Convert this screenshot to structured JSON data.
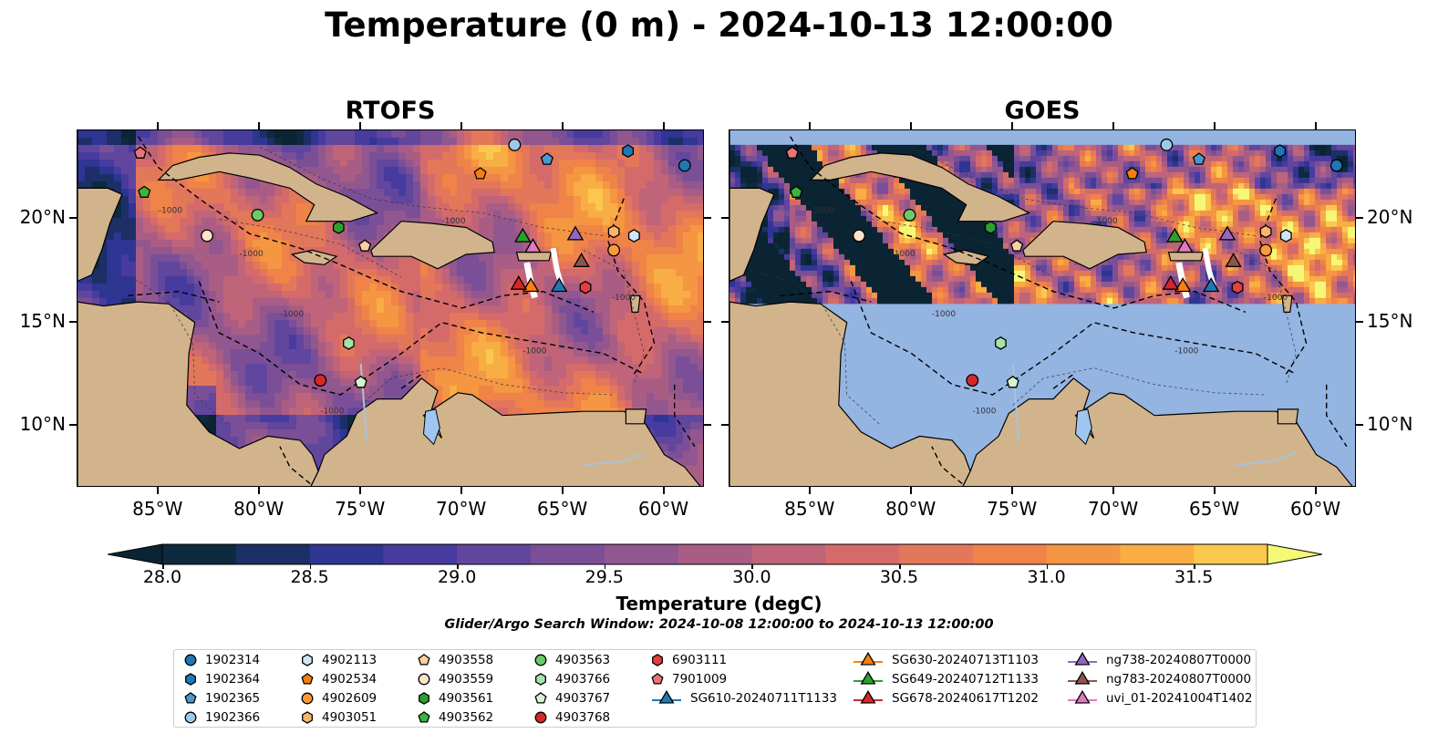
{
  "title": "Temperature (0 m) - 2024-10-13 12:00:00",
  "panels": [
    {
      "title": "RTOFS"
    },
    {
      "title": "GOES"
    }
  ],
  "x_ticks": [
    "85°W",
    "80°W",
    "75°W",
    "70°W",
    "65°W",
    "60°W"
  ],
  "y_ticks": [
    "20°N",
    "15°N",
    "10°N"
  ],
  "colorbar": {
    "label": "Temperature (degC)",
    "ticks": [
      "28.0",
      "28.5",
      "29.0",
      "29.5",
      "30.0",
      "30.5",
      "31.0",
      "31.5"
    ],
    "colors": [
      "#0d2a3e",
      "#1c2f66",
      "#2f3592",
      "#473b9f",
      "#61469e",
      "#7a4f98",
      "#92578f",
      "#a95d85",
      "#bf6479",
      "#d46b6a",
      "#e3775a",
      "#ef8348",
      "#f59642",
      "#f8ad45",
      "#fbc84e"
    ],
    "under_color": "#0b2433",
    "over_color": "#f5f876"
  },
  "contour_label": "-1000",
  "search_window": "Glider/Argo Search Window: 2024-10-08 12:00:00 to 2024-10-13 12:00:00",
  "legend": [
    {
      "label": "1902314",
      "marker": "circle",
      "color": "#1f77b4"
    },
    {
      "label": "1902364",
      "marker": "hexagon",
      "color": "#1f77b4"
    },
    {
      "label": "1902365",
      "marker": "pentagon",
      "color": "#4a98d0"
    },
    {
      "label": "1902366",
      "marker": "circle",
      "color": "#9ecae9"
    },
    {
      "label": "4902113",
      "marker": "hexagon",
      "color": "#cfe6f6"
    },
    {
      "label": "4902534",
      "marker": "pentagon",
      "color": "#f57f0e"
    },
    {
      "label": "4902609",
      "marker": "circle",
      "color": "#f99a3b"
    },
    {
      "label": "4903051",
      "marker": "hexagon",
      "color": "#fcb46c"
    },
    {
      "label": "4903558",
      "marker": "pentagon",
      "color": "#fdce9f"
    },
    {
      "label": "4903559",
      "marker": "circle",
      "color": "#fde3c8"
    },
    {
      "label": "4903561",
      "marker": "hexagon",
      "color": "#2ca02c"
    },
    {
      "label": "4903562",
      "marker": "pentagon",
      "color": "#3cb43c"
    },
    {
      "label": "4903563",
      "marker": "circle",
      "color": "#69cc69"
    },
    {
      "label": "4903766",
      "marker": "hexagon",
      "color": "#a6e3a6"
    },
    {
      "label": "4903767",
      "marker": "pentagon",
      "color": "#d4f5d0"
    },
    {
      "label": "4903768",
      "marker": "circle",
      "color": "#d62728"
    },
    {
      "label": "6903111",
      "marker": "hexagon",
      "color": "#e04040"
    },
    {
      "label": "7901009",
      "marker": "pentagon",
      "color": "#e8747a"
    },
    {
      "label": "SG610-20240711T1133",
      "marker": "triangle-line",
      "color": "#1f77b4"
    },
    {
      "label": "SG630-20240713T1103",
      "marker": "triangle-line",
      "color": "#ff7f0e"
    },
    {
      "label": "SG649-20240712T1133",
      "marker": "triangle-line",
      "color": "#2ca02c"
    },
    {
      "label": "SG678-20240617T1202",
      "marker": "triangle-line",
      "color": "#d62728"
    },
    {
      "label": "ng738-20240807T0000",
      "marker": "triangle-line",
      "color": "#9467bd"
    },
    {
      "label": "ng783-20240807T0000",
      "marker": "triangle-line",
      "color": "#8c564b"
    },
    {
      "label": "uvi_01-20241004T1402",
      "marker": "triangle-line",
      "color": "#e377c2"
    }
  ],
  "map_data": {
    "lon_range": [
      -89,
      -58
    ],
    "lat_range": [
      7,
      24.3
    ],
    "land_color": "#d2b48c",
    "nodata_color": "#94b4e2",
    "stations": [
      {
        "id": "1902314",
        "lon": -59,
        "lat": 22.6
      },
      {
        "id": "1902364",
        "lon": -61.8,
        "lat": 23.3
      },
      {
        "id": "1902365",
        "lon": -65.8,
        "lat": 22.9
      },
      {
        "id": "1902366",
        "lon": -67.4,
        "lat": 23.6
      },
      {
        "id": "4902113",
        "lon": -61.5,
        "lat": 19.2
      },
      {
        "id": "4902534",
        "lon": -69.1,
        "lat": 22.2
      },
      {
        "id": "4902609",
        "lon": -62.5,
        "lat": 18.5
      },
      {
        "id": "4903051",
        "lon": -62.5,
        "lat": 19.4
      },
      {
        "id": "4903558",
        "lon": -74.8,
        "lat": 18.7
      },
      {
        "id": "4903559",
        "lon": -82.6,
        "lat": 19.2
      },
      {
        "id": "4903561",
        "lon": -76.1,
        "lat": 19.6
      },
      {
        "id": "4903562",
        "lon": -85.7,
        "lat": 21.3
      },
      {
        "id": "4903563",
        "lon": -80.1,
        "lat": 20.2
      },
      {
        "id": "4903766",
        "lon": -75.6,
        "lat": 14.0
      },
      {
        "id": "4903767",
        "lon": -75.0,
        "lat": 12.1
      },
      {
        "id": "4903768",
        "lon": -77.0,
        "lat": 12.2
      },
      {
        "id": "6903111",
        "lon": -63.9,
        "lat": 16.7
      },
      {
        "id": "7901009",
        "lon": -85.9,
        "lat": 23.2
      },
      {
        "id": "SG610-20240711T1133",
        "lon": -65.2,
        "lat": 16.8
      },
      {
        "id": "SG630-20240713T1103",
        "lon": -66.6,
        "lat": 16.8
      },
      {
        "id": "SG649-20240712T1133",
        "lon": -67.0,
        "lat": 19.2
      },
      {
        "id": "SG678-20240617T1202",
        "lon": -67.2,
        "lat": 16.9
      },
      {
        "id": "ng738-20240807T0000",
        "lon": -64.4,
        "lat": 19.3
      },
      {
        "id": "ng783-20240807T0000",
        "lon": -64.1,
        "lat": 18.0
      },
      {
        "id": "uvi_01-20241004T1402",
        "lon": -66.5,
        "lat": 18.7
      }
    ]
  }
}
